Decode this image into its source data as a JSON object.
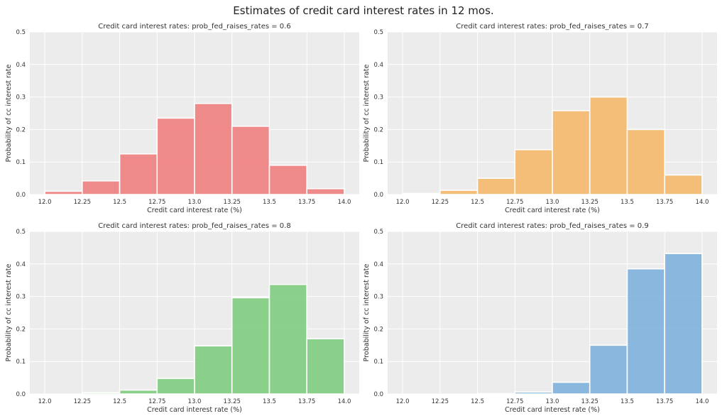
{
  "figure_title": "Estimates of credit card interest rates in 12 mos.",
  "colors": {
    "background": "#ffffff",
    "plot_bg": "#ececec",
    "grid": "#ffffff",
    "text": "#333333"
  },
  "chart_data": [
    {
      "type": "bar",
      "title": "Credit card interest rates: prob_fed_raises_rates = 0.6",
      "xlabel": "Credit card interest rate (%)",
      "ylabel": "Probability of cc interest rate",
      "bin_edges": [
        12.0,
        12.25,
        12.5,
        12.75,
        13.0,
        13.25,
        13.5,
        13.75,
        14.0
      ],
      "values": [
        0.01,
        0.042,
        0.125,
        0.235,
        0.28,
        0.21,
        0.09,
        0.018
      ],
      "xticks": [
        "12.0",
        "12.25",
        "12.5",
        "12.75",
        "13.0",
        "13.25",
        "13.5",
        "13.75",
        "14.0"
      ],
      "yticks": [
        "0.0",
        "0.1",
        "0.2",
        "0.3",
        "0.4",
        "0.5"
      ],
      "xlim": [
        11.9,
        14.1
      ],
      "ylim": [
        0,
        0.5
      ],
      "color": "#f08080"
    },
    {
      "type": "bar",
      "title": "Credit card interest rates: prob_fed_raises_rates = 0.7",
      "xlabel": "Credit card interest rate (%)",
      "ylabel": "Probability of cc interest rate",
      "bin_edges": [
        12.0,
        12.25,
        12.5,
        12.75,
        13.0,
        13.25,
        13.5,
        13.75,
        14.0
      ],
      "values": [
        0.003,
        0.013,
        0.05,
        0.138,
        0.258,
        0.3,
        0.2,
        0.06
      ],
      "xticks": [
        "12.0",
        "12.25",
        "12.5",
        "12.75",
        "13.0",
        "13.25",
        "13.5",
        "13.75",
        "14.0"
      ],
      "yticks": [
        "0.0",
        "0.1",
        "0.2",
        "0.3",
        "0.4",
        "0.5"
      ],
      "xlim": [
        11.9,
        14.1
      ],
      "ylim": [
        0,
        0.5
      ],
      "color": "#f5b86b"
    },
    {
      "type": "bar",
      "title": "Credit card interest rates: prob_fed_raises_rates = 0.8",
      "xlabel": "Credit card interest rate (%)",
      "ylabel": "Probability of cc interest rate",
      "bin_edges": [
        12.0,
        12.25,
        12.5,
        12.75,
        13.0,
        13.25,
        13.5,
        13.75,
        14.0
      ],
      "values": [
        0.0,
        0.004,
        0.012,
        0.048,
        0.148,
        0.296,
        0.337,
        0.17
      ],
      "xticks": [
        "12.0",
        "12.25",
        "12.5",
        "12.75",
        "13.0",
        "13.25",
        "13.5",
        "13.75",
        "14.0"
      ],
      "yticks": [
        "0.0",
        "0.1",
        "0.2",
        "0.3",
        "0.4",
        "0.5"
      ],
      "xlim": [
        11.9,
        14.1
      ],
      "ylim": [
        0,
        0.5
      ],
      "color": "#7fcc7f"
    },
    {
      "type": "bar",
      "title": "Credit card interest rates: prob_fed_raises_rates = 0.9",
      "xlabel": "Credit card interest rate (%)",
      "ylabel": "Probability of cc interest rate",
      "bin_edges": [
        12.0,
        12.25,
        12.5,
        12.75,
        13.0,
        13.25,
        13.5,
        13.75,
        14.0
      ],
      "values": [
        0.0,
        0.0,
        0.001,
        0.006,
        0.036,
        0.15,
        0.385,
        0.432
      ],
      "xticks": [
        "12.0",
        "12.25",
        "12.5",
        "12.75",
        "13.0",
        "13.25",
        "13.5",
        "13.75",
        "14.0"
      ],
      "yticks": [
        "0.0",
        "0.1",
        "0.2",
        "0.3",
        "0.4",
        "0.5"
      ],
      "xlim": [
        11.9,
        14.1
      ],
      "ylim": [
        0,
        0.5
      ],
      "color": "#7fb1dc"
    }
  ]
}
